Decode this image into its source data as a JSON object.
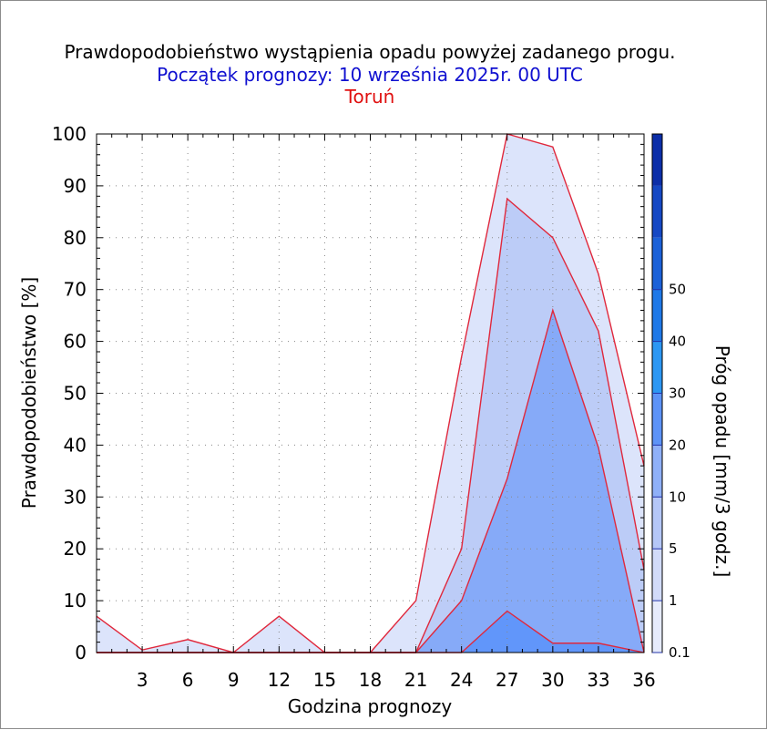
{
  "titles": {
    "main": "Prawdopodobieństwo wystąpienia opadu powyżej zadanego progu.",
    "subtitle": "Początek prognozy: 10 września 2025r. 00 UTC",
    "location": "Toruń"
  },
  "chart_data": {
    "type": "area",
    "xlabel": "Godzina prognozy",
    "ylabel": "Prawdopodobieństwo [%]",
    "xlim": [
      0,
      36
    ],
    "ylim": [
      0,
      100
    ],
    "x_ticks": [
      3,
      6,
      9,
      12,
      15,
      18,
      21,
      24,
      27,
      30,
      33,
      36
    ],
    "y_ticks": [
      0,
      10,
      20,
      30,
      40,
      50,
      60,
      70,
      80,
      90,
      100
    ],
    "grid": true,
    "x": [
      0,
      3,
      6,
      9,
      12,
      15,
      18,
      21,
      24,
      27,
      30,
      33,
      36
    ],
    "series": [
      {
        "threshold": "0.1",
        "color": "#dce4fb",
        "values": [
          7,
          0.5,
          2.5,
          0,
          7,
          0,
          0,
          10,
          57,
          100,
          97.5,
          73,
          36
        ]
      },
      {
        "threshold": "1",
        "color": "#bcccf7",
        "values": [
          0,
          0,
          0,
          0,
          0,
          0,
          0,
          0,
          20,
          87.5,
          80,
          62,
          16
        ]
      },
      {
        "threshold": "5",
        "color": "#86aaf8",
        "values": [
          0,
          0,
          0,
          0,
          0,
          0,
          0,
          0,
          10,
          33.5,
          66,
          39.5,
          0
        ]
      },
      {
        "threshold": "10",
        "color": "#6196fa",
        "values": [
          0,
          0,
          0,
          0,
          0,
          0,
          0,
          0,
          0,
          8,
          1.8,
          1.8,
          0
        ]
      }
    ],
    "line_color": "#e0283c",
    "colorbar": {
      "title": "Próg opadu [mm/3 godz.]",
      "labels": [
        "0.1",
        "1",
        "5",
        "10",
        "20",
        "30",
        "40",
        "50"
      ],
      "colors": [
        "#e6ebfc",
        "#d2dbf9",
        "#b5c7f7",
        "#8fb0f8",
        "#5d93f7",
        "#2c97f3",
        "#1f79e8",
        "#1b61d8",
        "#1548c4",
        "#0c2ea8"
      ]
    }
  }
}
